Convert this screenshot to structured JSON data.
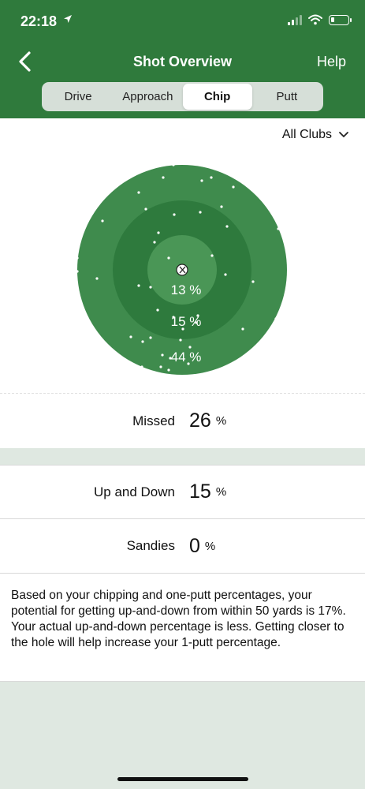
{
  "status": {
    "time": "22:18"
  },
  "header": {
    "title": "Shot Overview",
    "help_label": "Help"
  },
  "tabs": [
    {
      "label": "Drive",
      "active": false
    },
    {
      "label": "Approach",
      "active": false
    },
    {
      "label": "Chip",
      "active": true
    },
    {
      "label": "Putt",
      "active": false
    }
  ],
  "filter": {
    "label": "All Clubs"
  },
  "target": {
    "rings": [
      {
        "label": "13 %"
      },
      {
        "label": "15 %"
      },
      {
        "label": "44 %"
      }
    ]
  },
  "stats": {
    "missed": {
      "label": "Missed",
      "value": "26",
      "unit": "%"
    },
    "up_and_down": {
      "label": "Up and Down",
      "value": "15",
      "unit": "%"
    },
    "sandies": {
      "label": "Sandies",
      "value": "0",
      "unit": "%"
    }
  },
  "description": "Based on your chipping and one-putt percentages, your potential for getting up-and-down from within 50 yards is 17%. Your actual up-and-down percentage is less. Getting closer to the hole will help increase your 1-putt percentage.",
  "colors": {
    "header": "#2f7a3c",
    "outer_ring": "#3f8b4d",
    "middle_ring": "#2e7a3d",
    "inner_ring": "#4a9656"
  }
}
